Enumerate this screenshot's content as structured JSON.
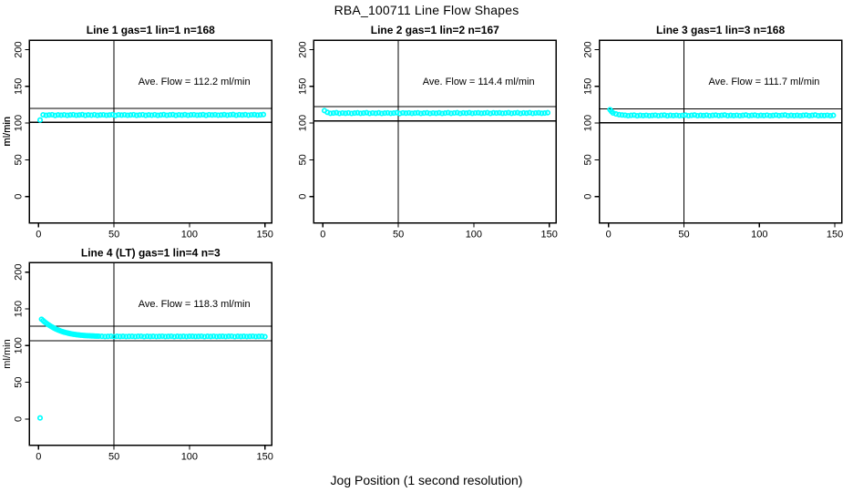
{
  "figure": {
    "title": "RBA_100711  Line Flow Shapes",
    "xlabel": "Jog Position (1 second resolution)",
    "background_color": "#ffffff",
    "point_color": "#00FFFF",
    "axis_color": "#000000"
  },
  "chart_data": {
    "type": "scatter",
    "title": "RBA_100711  Line Flow Shapes",
    "xlabel": "Jog Position (1 second resolution)",
    "ylabel": "ml/min",
    "xticks": [
      0,
      50,
      100,
      150
    ],
    "yticks": [
      0,
      50,
      100,
      150,
      200
    ],
    "xlim": [
      -6,
      154.6
    ],
    "ylim": [
      -35.7,
      213
    ],
    "grid": false,
    "marker": "open-circle",
    "point_color": "#00FFFF",
    "panels": [
      {
        "title": "Line 1 gas=1 lin=1 n=168",
        "annotation": "Ave. Flow =  112.2  ml/min",
        "ave_flow": 112.2,
        "n": 168,
        "ylabel": "ml/min",
        "vline_x": 50,
        "hlines": [
          120.1,
          101.0
        ],
        "extra_points": [
          [
            1,
            104.2
          ]
        ],
        "series": [
          {
            "x0": 3,
            "dx": 2,
            "y": [
              111.3,
              110.6,
              111.0,
              111.4,
              110.4,
              111.2,
              110.8,
              111.3,
              110.6,
              111.0,
              111.4,
              110.7,
              111.1,
              111.5,
              110.5,
              111.2,
              110.8,
              111.4,
              110.6,
              111.1,
              111.3,
              110.7,
              111.0,
              111.5,
              110.4,
              111.3,
              110.9,
              111.3,
              110.7,
              111.0,
              111.4,
              110.6,
              111.1,
              111.4,
              110.5,
              111.2,
              110.8,
              111.4,
              110.6,
              111.1,
              111.5,
              110.7,
              111.2,
              111.6,
              110.6,
              111.3,
              110.9,
              111.5,
              110.7,
              111.2,
              111.4,
              110.8,
              111.1,
              111.6,
              110.5,
              111.4,
              111.0,
              111.4,
              110.8,
              111.1,
              111.6,
              110.8,
              111.3,
              111.7,
              110.7,
              111.4,
              111.0,
              111.6,
              110.8,
              111.3,
              111.5,
              110.9,
              111.2,
              111.7
            ]
          }
        ]
      },
      {
        "title": "Line 2 gas=1 lin=2 n=167",
        "annotation": "Ave. Flow =  114.4  ml/min",
        "ave_flow": 114.4,
        "n": 167,
        "ylabel": "ml/min",
        "vline_x": 50,
        "hlines": [
          122.4,
          103.0
        ],
        "extra_points": [
          [
            1,
            117.0
          ]
        ],
        "series": [
          {
            "x0": 3,
            "dx": 2,
            "y": [
              114.6,
              113.3,
              113.7,
              114.1,
              113.1,
              113.8,
              113.4,
              113.9,
              113.2,
              113.6,
              114.0,
              113.3,
              113.7,
              114.1,
              113.1,
              113.8,
              113.4,
              114.0,
              113.2,
              113.7,
              113.9,
              113.3,
              113.6,
              114.1,
              113.0,
              113.9,
              113.5,
              113.9,
              113.3,
              113.6,
              114.0,
              113.2,
              113.7,
              114.0,
              113.1,
              113.8,
              113.4,
              114.0,
              113.2,
              113.7,
              114.1,
              113.3,
              113.8,
              114.2,
              113.2,
              113.9,
              113.5,
              114.1,
              113.3,
              113.8,
              114.0,
              113.4,
              113.7,
              114.2,
              113.1,
              114.0,
              113.6,
              114.0,
              113.4,
              113.7,
              114.1,
              113.3,
              113.8,
              114.2,
              113.2,
              113.9,
              113.5,
              114.1,
              113.3,
              113.8,
              114.0,
              113.4,
              113.7,
              114.1
            ]
          }
        ]
      },
      {
        "title": "Line 3 gas=1 lin=3 n=168",
        "annotation": "Ave. Flow =  111.7  ml/min",
        "ave_flow": 111.7,
        "n": 168,
        "ylabel": "ml/min",
        "vline_x": 50,
        "hlines": [
          119.5,
          100.5
        ],
        "extra_points": [
          [
            1,
            118.3
          ],
          [
            2,
            115.7
          ]
        ],
        "series": [
          {
            "x0": 3,
            "dx": 2,
            "y": [
              113.8,
              112.4,
              111.5,
              111.0,
              110.8,
              110.1,
              110.5,
              110.9,
              109.9,
              110.6,
              110.2,
              110.7,
              110.0,
              110.4,
              110.8,
              110.1,
              110.5,
              110.9,
              109.9,
              110.6,
              110.2,
              110.7,
              110.0,
              110.4,
              110.9,
              110.1,
              110.6,
              111.0,
              110.0,
              110.5,
              110.3,
              110.8,
              110.0,
              110.5,
              110.9,
              110.2,
              110.6,
              111.0,
              110.0,
              110.6,
              110.2,
              110.7,
              110.1,
              110.5,
              111.0,
              110.1,
              110.6,
              110.9,
              110.1,
              110.5,
              110.3,
              110.8,
              110.0,
              110.4,
              110.9,
              110.2,
              110.7,
              111.0,
              110.0,
              110.5,
              110.2,
              110.6,
              110.1,
              110.5,
              110.9,
              110.1,
              110.6,
              111.0,
              110.1,
              110.4,
              110.3,
              110.7,
              110.0,
              110.5
            ]
          }
        ]
      },
      {
        "title": "Line 4 (LT) gas=1 lin=4 n=3",
        "annotation": "Ave. Flow =  118.3  ml/min",
        "ave_flow": 118.3,
        "n": 3,
        "ylabel": "ml/min",
        "vline_x": 50,
        "hlines": [
          126.6,
          106.5
        ],
        "extra_points": [
          [
            1,
            1.5
          ]
        ],
        "series": [
          {
            "x0": 2,
            "dx": 1,
            "y": [
              135.8,
              134.0,
              132.3,
              130.7,
              129.2,
              127.8,
              126.5,
              125.3,
              124.2,
              123.1,
              122.1,
              121.2,
              120.4,
              119.6,
              118.9,
              118.3,
              117.7,
              117.2,
              116.7,
              116.3,
              115.9,
              115.5,
              115.2,
              114.9,
              114.6,
              114.4,
              114.2,
              114.0,
              113.8,
              113.7,
              113.5,
              113.4,
              113.3,
              113.2,
              113.1,
              113.0,
              112.9,
              112.9,
              112.8
            ]
          },
          {
            "x0": 42,
            "dx": 2,
            "y": [
              112.7,
              112.3,
              112.5,
              112.8,
              112.2,
              112.6,
              112.4,
              112.7,
              112.3,
              112.5,
              112.7,
              112.3,
              112.6,
              112.8,
              112.2,
              112.6,
              112.4,
              112.7,
              112.3,
              112.5,
              112.8,
              112.3,
              112.5,
              112.8,
              112.2,
              112.7,
              112.4,
              112.7,
              112.3,
              112.6,
              112.7,
              112.4,
              112.5,
              112.8,
              112.2,
              112.6,
              112.4,
              112.8,
              112.3,
              112.5,
              112.7,
              112.3,
              112.6,
              112.8,
              112.2,
              112.6,
              112.4,
              112.7,
              112.3,
              112.5,
              112.8,
              112.3,
              112.5,
              112.7,
              112.2
            ]
          }
        ]
      }
    ]
  }
}
